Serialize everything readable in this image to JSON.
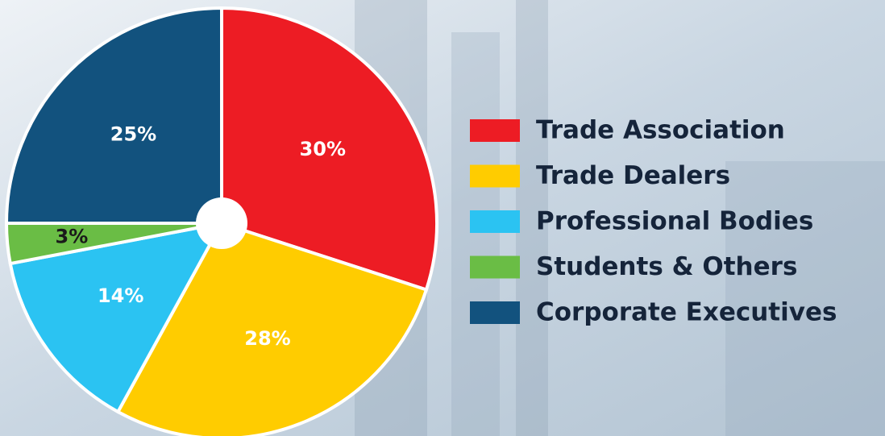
{
  "chart_data": {
    "type": "pie",
    "categories": [
      "Trade Association",
      "Trade Dealers",
      "Professional Bodies",
      "Students & Others",
      "Corporate Executives"
    ],
    "values": [
      30,
      28,
      14,
      3,
      25
    ],
    "value_labels": [
      "30%",
      "28%",
      "14%",
      "3%",
      "25%"
    ],
    "colors": [
      "#ed1c24",
      "#ffcc00",
      "#2bc3f2",
      "#6abd45",
      "#12527e"
    ]
  }
}
